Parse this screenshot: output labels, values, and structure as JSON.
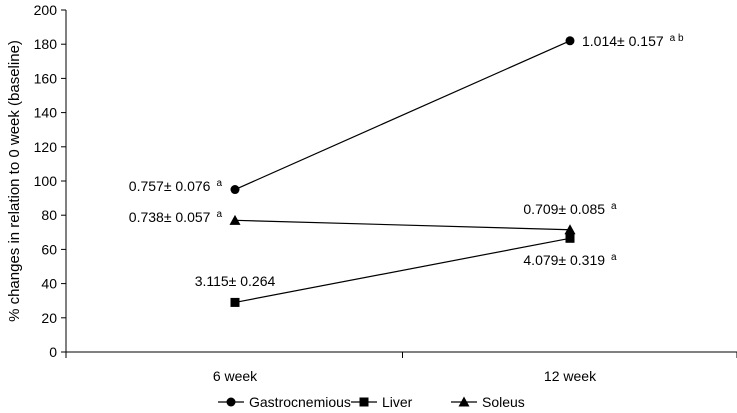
{
  "chart_data": {
    "type": "line",
    "title": "",
    "xlabel": "",
    "ylabel": "% changes in relation to 0 week (baseline)",
    "ylim": [
      0,
      200
    ],
    "y_tick_step": 20,
    "categories": [
      "6 week",
      "12 week"
    ],
    "legend_position": "bottom",
    "series": [
      {
        "name": "Gastrocnemious",
        "marker": "circle",
        "values": [
          95,
          182
        ],
        "labels": [
          {
            "text": "0.757± 0.076",
            "sup": "a"
          },
          {
            "text": "1.014± 0.157",
            "sup": "a b"
          }
        ]
      },
      {
        "name": "Liver",
        "marker": "square",
        "values": [
          29,
          66.5
        ],
        "labels": [
          {
            "text": "3.115± 0.264",
            "sup": ""
          },
          {
            "text": "4.079± 0.319",
            "sup": "a"
          }
        ]
      },
      {
        "name": "Soleus",
        "marker": "triangle",
        "values": [
          77,
          71.5
        ],
        "labels": [
          {
            "text": "0.738± 0.057",
            "sup": "a"
          },
          {
            "text": "0.709± 0.085",
            "sup": "a"
          }
        ]
      }
    ]
  }
}
